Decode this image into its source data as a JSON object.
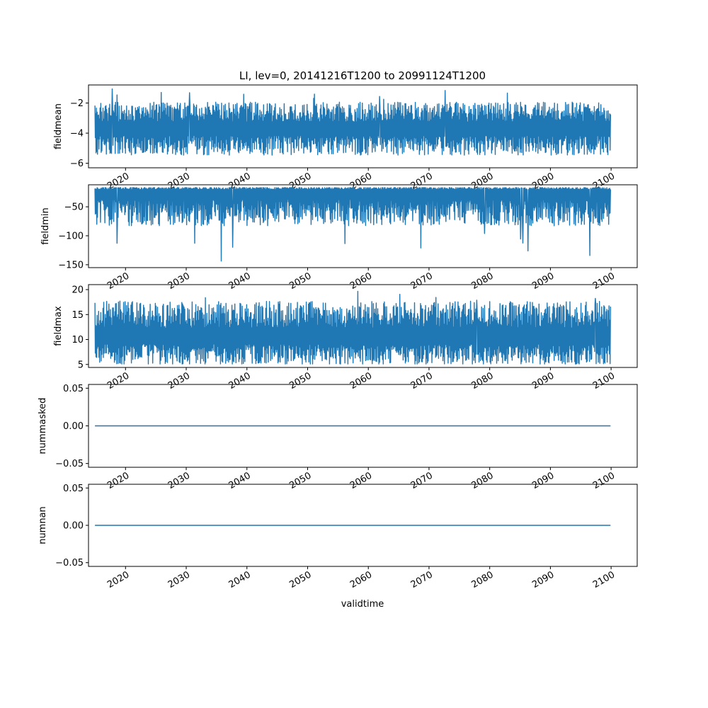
{
  "figure": {
    "title": "LI, lev=0, 20141216T1200 to 20991124T1200",
    "xlabel": "validtime",
    "line_color": "#1f77b4"
  },
  "chart_data": [
    {
      "type": "line",
      "name": "fieldmean",
      "ylabel": "fieldmean",
      "x_range": [
        "2014-12-16",
        "2099-11-24"
      ],
      "xlim": [
        2013.9,
        2104.3
      ],
      "ylim": [
        -6.3,
        -0.8
      ],
      "yticks": [
        -6,
        -4,
        -2
      ],
      "ytick_labels": [
        "−6",
        "−4",
        "−2"
      ],
      "xticks": [
        2020,
        2030,
        2040,
        2050,
        2060,
        2070,
        2080,
        2090,
        2100
      ],
      "xtick_labels": [
        "2020",
        "2030",
        "2040",
        "2050",
        "2060",
        "2070",
        "2080",
        "2090",
        "2100"
      ],
      "noise": {
        "baseline": -3.7,
        "low_mean": -4.8,
        "high_mean": -2.6,
        "min": -6.1,
        "max": -1.0
      },
      "grid": false
    },
    {
      "type": "line",
      "name": "fieldmin",
      "ylabel": "fieldmin",
      "x_range": [
        "2014-12-16",
        "2099-11-24"
      ],
      "xlim": [
        2013.9,
        2104.3
      ],
      "ylim": [
        -155,
        -12
      ],
      "yticks": [
        -150,
        -100,
        -50
      ],
      "ytick_labels": [
        "−150",
        "−100",
        "−50"
      ],
      "xticks": [
        2020,
        2030,
        2040,
        2050,
        2060,
        2070,
        2080,
        2090,
        2100
      ],
      "xtick_labels": [
        "2020",
        "2030",
        "2040",
        "2050",
        "2060",
        "2070",
        "2080",
        "2090",
        "2100"
      ],
      "noise": {
        "baseline": -22,
        "low_mean": -60,
        "high_mean": -18,
        "min": -148,
        "max": -17
      },
      "grid": false
    },
    {
      "type": "line",
      "name": "fieldmax",
      "ylabel": "fieldmax",
      "x_range": [
        "2014-12-16",
        "2099-11-24"
      ],
      "xlim": [
        2013.9,
        2104.3
      ],
      "ylim": [
        4.4,
        21.0
      ],
      "yticks": [
        5,
        10,
        15,
        20
      ],
      "ytick_labels": [
        "5",
        "10",
        "15",
        "20"
      ],
      "xticks": [
        2020,
        2030,
        2040,
        2050,
        2060,
        2070,
        2080,
        2090,
        2100
      ],
      "xtick_labels": [
        "2020",
        "2030",
        "2040",
        "2050",
        "2060",
        "2070",
        "2080",
        "2090",
        "2100"
      ],
      "noise": {
        "baseline": 10.5,
        "low_mean": 7.0,
        "high_mean": 15.0,
        "min": 5.1,
        "max": 20.3
      },
      "grid": false
    },
    {
      "type": "line",
      "name": "nummasked",
      "ylabel": "nummasked",
      "x_range": [
        "2014-12-16",
        "2099-11-24"
      ],
      "xlim": [
        2013.9,
        2104.3
      ],
      "ylim": [
        -0.055,
        0.055
      ],
      "yticks": [
        -0.05,
        0.0,
        0.05
      ],
      "ytick_labels": [
        "−0.05",
        "0.00",
        "0.05"
      ],
      "xticks": [
        2020,
        2030,
        2040,
        2050,
        2060,
        2070,
        2080,
        2090,
        2100
      ],
      "xtick_labels": [
        "2020",
        "2030",
        "2040",
        "2050",
        "2060",
        "2070",
        "2080",
        "2090",
        "2100"
      ],
      "constant_value": 0.0,
      "grid": false
    },
    {
      "type": "line",
      "name": "numnan",
      "ylabel": "numnan",
      "x_range": [
        "2014-12-16",
        "2099-11-24"
      ],
      "xlim": [
        2013.9,
        2104.3
      ],
      "ylim": [
        -0.055,
        0.055
      ],
      "yticks": [
        -0.05,
        0.0,
        0.05
      ],
      "ytick_labels": [
        "−0.05",
        "0.00",
        "0.05"
      ],
      "xticks": [
        2020,
        2030,
        2040,
        2050,
        2060,
        2070,
        2080,
        2090,
        2100
      ],
      "xtick_labels": [
        "2020",
        "2030",
        "2040",
        "2050",
        "2060",
        "2070",
        "2080",
        "2090",
        "2100"
      ],
      "constant_value": 0.0,
      "grid": false
    }
  ]
}
